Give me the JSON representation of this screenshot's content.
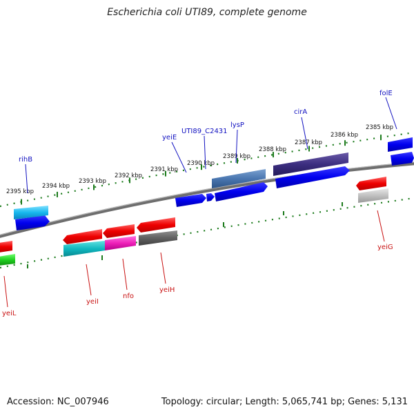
{
  "title": "Escherichia coli UTI89, complete genome",
  "footer": {
    "accession": "Accession: NC_007946",
    "summary": "Topology: circular; Length: 5,065,741 bp; Genes: 5,131"
  },
  "colors": {
    "forward_label": "#1010c0",
    "reverse_label": "#c81010",
    "backbone": "#808080",
    "ticks": "#1a7a1a"
  },
  "kbp_ticks": [
    {
      "label": "2385 kbp"
    },
    {
      "label": "2386 kbp"
    },
    {
      "label": "2387 kbp"
    },
    {
      "label": "2388 kbp"
    },
    {
      "label": "2389 kbp"
    },
    {
      "label": "2390 kbp"
    },
    {
      "label": "2391 kbp"
    },
    {
      "label": "2392 kbp"
    },
    {
      "label": "2393 kbp"
    },
    {
      "label": "2394 kbp"
    },
    {
      "label": "2395 kbp"
    }
  ],
  "gene_labels": [
    {
      "name": "folE",
      "strand": "forward"
    },
    {
      "name": "cirA",
      "strand": "forward"
    },
    {
      "name": "lysP",
      "strand": "forward"
    },
    {
      "name": "UTI89_C2431",
      "strand": "forward"
    },
    {
      "name": "yeiE",
      "strand": "forward"
    },
    {
      "name": "rihB",
      "strand": "forward"
    },
    {
      "name": "yeiG",
      "strand": "reverse"
    },
    {
      "name": "yeiH",
      "strand": "reverse"
    },
    {
      "name": "nfo",
      "strand": "reverse"
    },
    {
      "name": "yeiI",
      "strand": "reverse"
    },
    {
      "name": "yeiL",
      "strand": "reverse"
    }
  ]
}
